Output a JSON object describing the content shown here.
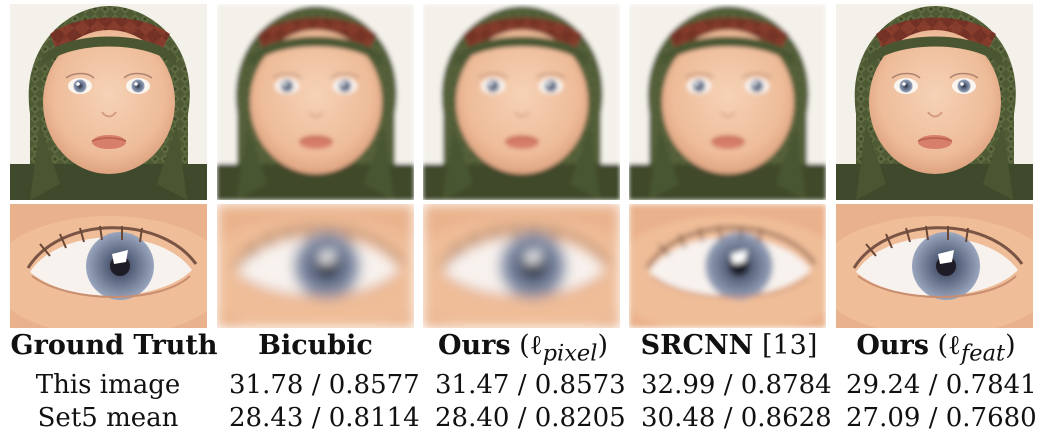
{
  "columns": [
    {
      "title": "Ground Truth"
    },
    {
      "title": "Bicubic"
    },
    {
      "title": "Ours",
      "loss": "(ℓ",
      "loss_sub": "pixel",
      "loss_close": ")"
    },
    {
      "title": "SRCNN",
      "ref": "[13]"
    },
    {
      "title": "Ours",
      "loss": "(ℓ",
      "loss_sub": "feat",
      "loss_close": ")"
    }
  ],
  "rows": [
    {
      "label": "This image",
      "values": [
        "31.78 / 0.8577",
        "31.47 / 0.8573",
        "32.99 / 0.8784",
        "29.24 / 0.7841"
      ]
    },
    {
      "label": "Set5 mean",
      "values": [
        "28.43 / 0.8114",
        "28.40 / 0.8205",
        "30.48 / 0.8628",
        "27.09 / 0.7680"
      ]
    }
  ],
  "colors": {
    "hat_green": "#4e5a34",
    "hat_red": "#7a2a22",
    "skin": "#f0c4a4",
    "iris": "#7f8eaa"
  }
}
